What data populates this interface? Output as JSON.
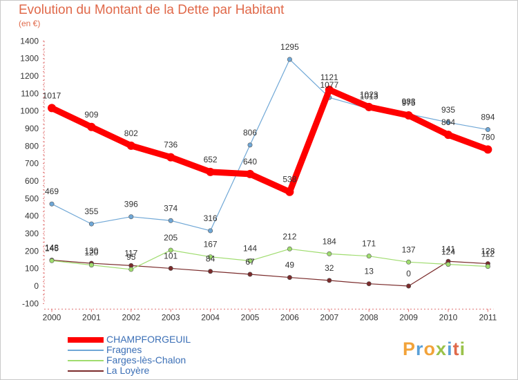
{
  "title": "Evolution du Montant de la Dette par Habitant",
  "subtitle": "(en €)",
  "logo": {
    "text": "Proxiti",
    "colors": [
      "#f2a33a",
      "#5aa0d8",
      "#f2a33a",
      "#9ac24a",
      "#5aa0d8",
      "#e0694a",
      "#9ac24a"
    ]
  },
  "chart_data": {
    "type": "line",
    "title": "Evolution du Montant de la Dette par Habitant",
    "subtitle": "(en €)",
    "xlabel": "",
    "ylabel": "",
    "x": [
      "2000",
      "2001",
      "2002",
      "2003",
      "2004",
      "2005",
      "2006",
      "2007",
      "2008",
      "2009",
      "2010",
      "2011"
    ],
    "yticks": [
      -100,
      0,
      100,
      200,
      300,
      400,
      500,
      600,
      700,
      800,
      900,
      1000,
      1100,
      1200,
      1300,
      1400
    ],
    "ylim": [
      -100,
      1400
    ],
    "grid": false,
    "legend": "bottom-left",
    "series": [
      {
        "name": "CHAMPFORGEUIL",
        "color": "#ff0000",
        "values": [
          1017,
          909,
          802,
          736,
          652,
          640,
          538,
          1121,
          1023,
          975,
          864,
          780
        ]
      },
      {
        "name": "Fragnes",
        "color": "#6fa7d6",
        "values": [
          469,
          355,
          396,
          374,
          316,
          806,
          1295,
          1077,
          1013,
          983,
          935,
          894
        ]
      },
      {
        "name": "Farges-lès-Chalon",
        "color": "#9fdc6e",
        "values": [
          145,
          120,
          95,
          205,
          167,
          144,
          212,
          184,
          171,
          137,
          124,
          112
        ]
      },
      {
        "name": "La Loyère",
        "color": "#7a2b2b",
        "values": [
          148,
          130,
          117,
          101,
          84,
          67,
          49,
          32,
          13,
          0,
          141,
          128
        ]
      }
    ]
  }
}
